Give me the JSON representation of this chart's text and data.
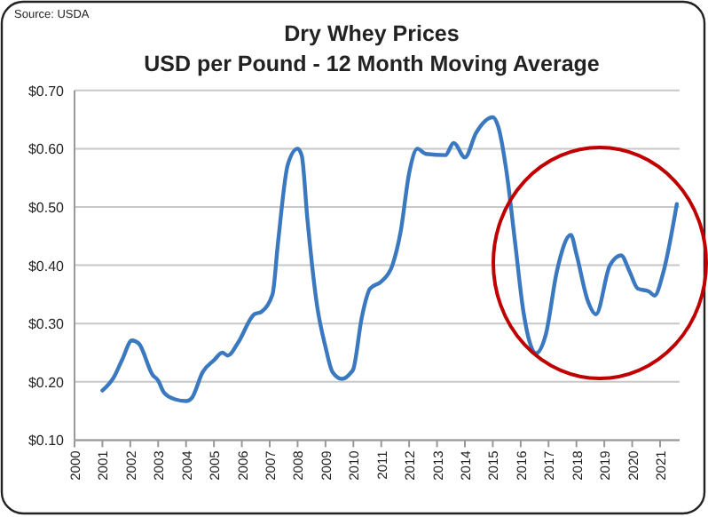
{
  "chart_data": {
    "type": "line",
    "title": "Dry Whey Prices",
    "subtitle": "USD per Pound - 12 Month Moving Average",
    "annotations": [
      "Source: USDA"
    ],
    "xlim": [
      2000,
      2021.7
    ],
    "xticks": [
      2000,
      2001,
      2002,
      2003,
      2004,
      2005,
      2006,
      2007,
      2008,
      2009,
      2010,
      2011,
      2012,
      2013,
      2014,
      2015,
      2016,
      2017,
      2018,
      2019,
      2020,
      2021
    ],
    "ylim": [
      0.1,
      0.7
    ],
    "yticks": [
      {
        "value": 0.1,
        "label": "$0.10"
      },
      {
        "value": 0.2,
        "label": "$0.20"
      },
      {
        "value": 0.3,
        "label": "$0.30"
      },
      {
        "value": 0.4,
        "label": "$0.40"
      },
      {
        "value": 0.5,
        "label": "$0.50"
      },
      {
        "value": 0.6,
        "label": "$0.60"
      },
      {
        "value": 0.7,
        "label": "$0.70"
      }
    ],
    "grid": "y",
    "marker": "none",
    "line_style": "solid",
    "series": [
      {
        "color": "#3a78c0",
        "x": [
          2001.0,
          2001.4,
          2001.7,
          2002.06,
          2002.3,
          2002.8,
          2003.0,
          2003.2,
          2003.6,
          2004.0,
          2004.2,
          2004.6,
          2005.0,
          2005.3,
          2005.5,
          2005.85,
          2006.45,
          2006.7,
          2007.1,
          2007.3,
          2007.65,
          2008.0,
          2008.15,
          2008.35,
          2008.7,
          2009.0,
          2009.25,
          2009.6,
          2009.9,
          2010.0,
          2010.3,
          2010.6,
          2011.0,
          2011.4,
          2011.7,
          2012.0,
          2012.3,
          2012.6,
          2013.3,
          2013.6,
          2014.0,
          2014.4,
          2015.0,
          2015.2,
          2015.5,
          2015.8,
          2016.1,
          2016.55,
          2016.9,
          2017.3,
          2017.8,
          2018.0,
          2018.4,
          2018.7,
          2019.2,
          2019.6,
          2019.9,
          2020.2,
          2020.6,
          2020.8,
          2021.1,
          2021.6
        ],
        "values": [
          0.185,
          0.207,
          0.237,
          0.271,
          0.266,
          0.212,
          0.202,
          0.182,
          0.17,
          0.167,
          0.172,
          0.217,
          0.237,
          0.25,
          0.245,
          0.266,
          0.316,
          0.32,
          0.35,
          0.44,
          0.573,
          0.6,
          0.588,
          0.48,
          0.33,
          0.26,
          0.217,
          0.205,
          0.215,
          0.222,
          0.31,
          0.36,
          0.372,
          0.4,
          0.459,
          0.558,
          0.6,
          0.591,
          0.589,
          0.61,
          0.585,
          0.627,
          0.654,
          0.637,
          0.558,
          0.439,
          0.32,
          0.249,
          0.281,
          0.39,
          0.452,
          0.419,
          0.34,
          0.316,
          0.4,
          0.417,
          0.39,
          0.36,
          0.355,
          0.348,
          0.385,
          0.505
        ]
      }
    ]
  }
}
